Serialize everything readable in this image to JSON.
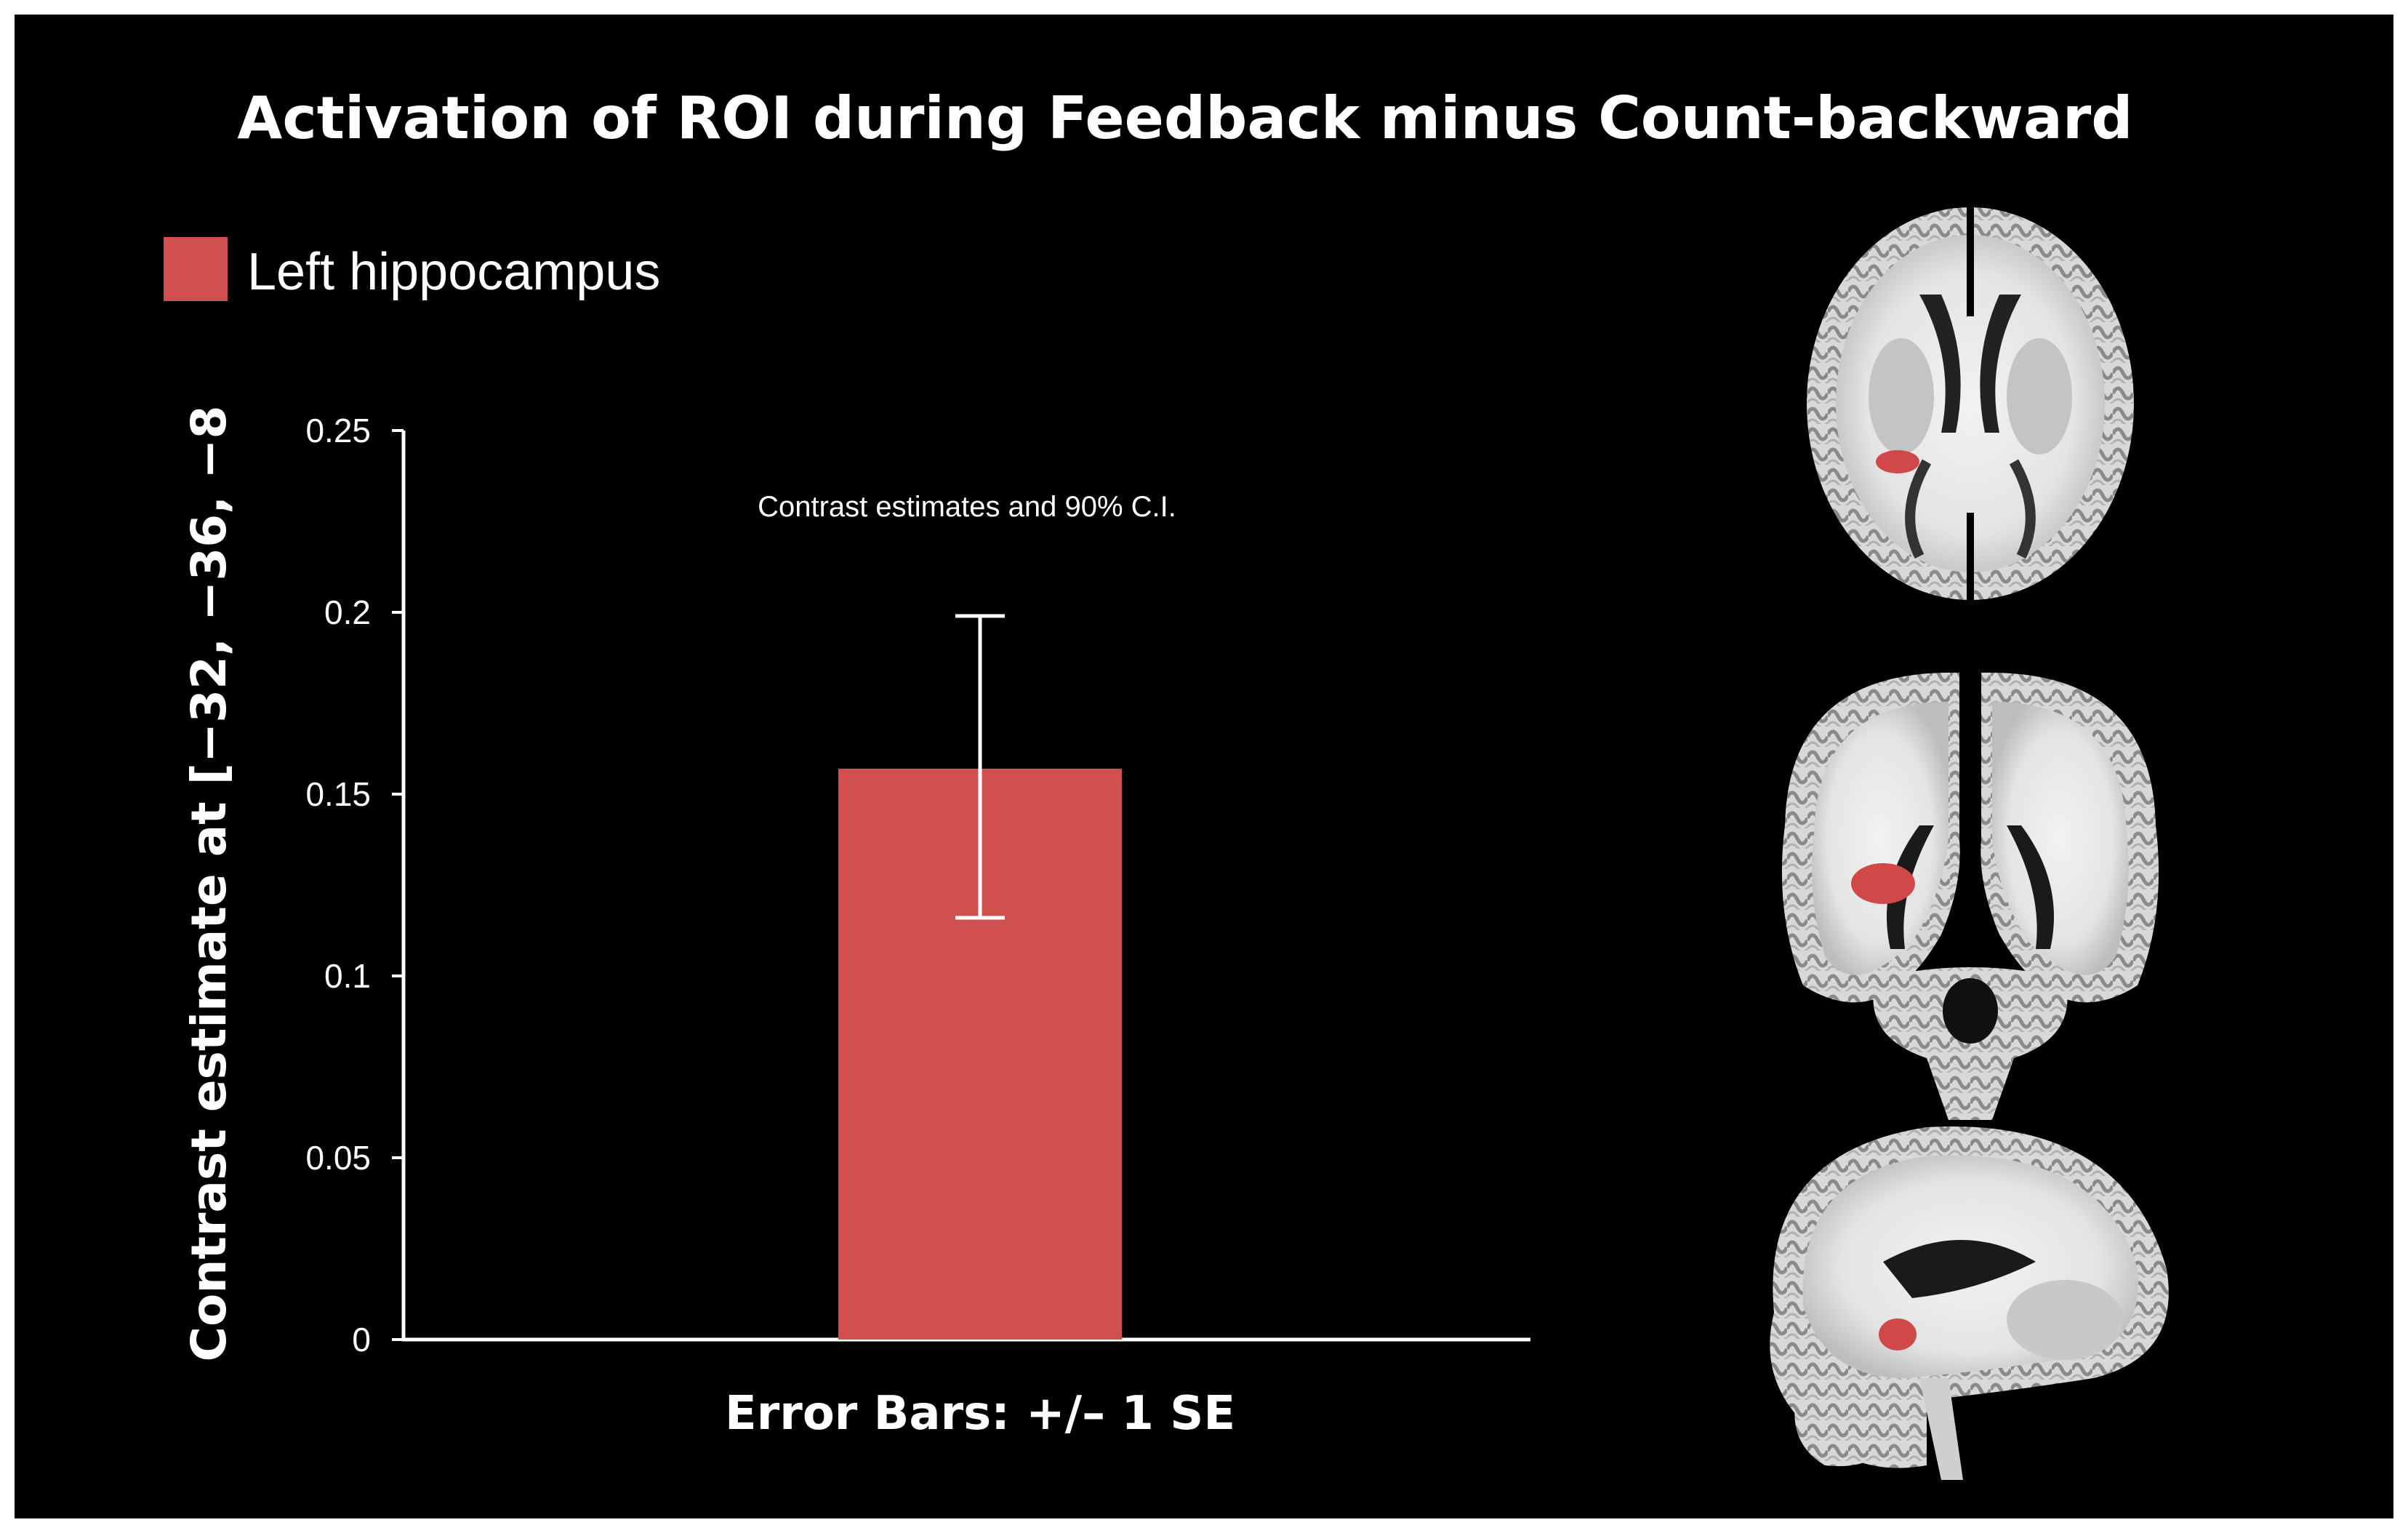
{
  "colors": {
    "background": "#000000",
    "bar": "#d05050",
    "text": "#ffffff",
    "roi": "#d04848"
  },
  "chart_data": {
    "type": "bar",
    "title": "Activation of ROI during Feedback minus Count-backward",
    "legend": {
      "label": "Left hippocampus",
      "placement": "top-left"
    },
    "annotation": "Contrast estimates and 90% C.I.",
    "ylabel": "Contrast estimate at [−32, −36, −8",
    "xlabel": "Error Bars: +/– 1 SE",
    "ylim": [
      0,
      0.25
    ],
    "yticks": [
      0,
      0.05,
      0.1,
      0.15,
      0.2,
      0.25
    ],
    "ytick_labels": [
      "0",
      "0.05",
      "0.1",
      "0.15",
      "0.2",
      "0.25"
    ],
    "series": [
      {
        "name": "Left hippocampus",
        "values": [
          0.157
        ],
        "error_low": [
          0.116
        ],
        "error_high": [
          0.199
        ]
      }
    ],
    "grid": false
  },
  "brain_images": [
    {
      "view": "axial-icon"
    },
    {
      "view": "coronal-icon"
    },
    {
      "view": "sagittal-icon"
    }
  ]
}
